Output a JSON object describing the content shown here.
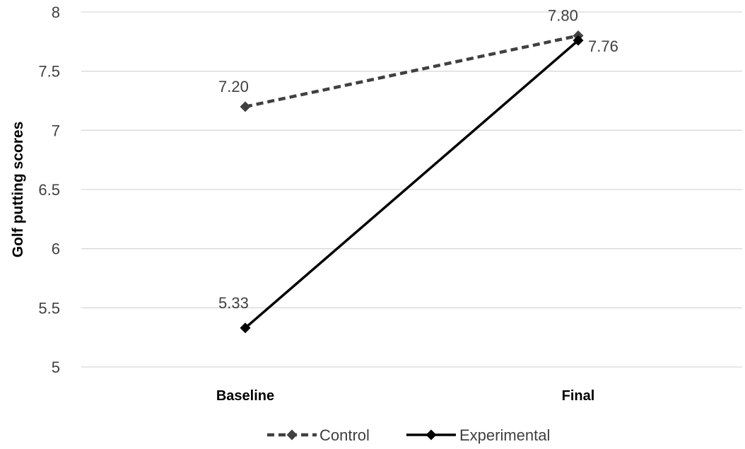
{
  "chart_data": {
    "type": "line",
    "categories": [
      "Baseline",
      "Final"
    ],
    "series": [
      {
        "name": "Control",
        "values": [
          7.2,
          7.8
        ],
        "labels": [
          "7.20",
          "7.80"
        ],
        "color": "#404040",
        "dash": true
      },
      {
        "name": "Experimental",
        "values": [
          5.33,
          7.76
        ],
        "labels": [
          "5.33",
          "7.76"
        ],
        "color": "#000000",
        "dash": false
      }
    ],
    "title": "",
    "xlabel": "",
    "ylabel": "Golf putting scores",
    "ylim": [
      5,
      8
    ],
    "yticks": [
      "5",
      "5.5",
      "6",
      "6.5",
      "7",
      "7.5",
      "8"
    ],
    "grid": true,
    "legend": "bottom-center"
  }
}
